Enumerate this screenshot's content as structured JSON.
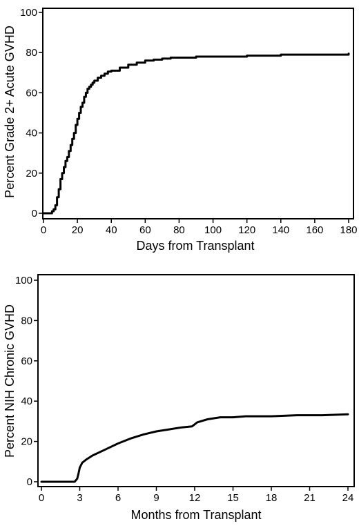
{
  "chart_data": [
    {
      "type": "line",
      "step": true,
      "xlabel": "Days from Transplant",
      "ylabel": "Percent Grade 2+ Acute GVHD",
      "xlim": [
        0,
        180
      ],
      "ylim": [
        0,
        100
      ],
      "xticks": [
        0,
        20,
        40,
        60,
        80,
        100,
        120,
        140,
        160,
        180
      ],
      "yticks": [
        0,
        20,
        40,
        60,
        80,
        100
      ],
      "grid": false,
      "series": [
        {
          "x": [
            0,
            4,
            5,
            6,
            7,
            8,
            9,
            10,
            11,
            12,
            13,
            14,
            15,
            16,
            17,
            18,
            19,
            20,
            21,
            22,
            23,
            24,
            25,
            26,
            27,
            28,
            29,
            30,
            32,
            34,
            36,
            38,
            40,
            45,
            50,
            55,
            60,
            65,
            70,
            75,
            80,
            90,
            100,
            120,
            140,
            160,
            180
          ],
          "y": [
            0,
            0,
            1,
            2,
            4,
            8,
            12,
            17,
            20,
            23,
            26,
            28,
            31,
            34,
            37,
            40,
            44,
            47,
            50,
            53,
            55,
            58,
            60,
            62,
            63,
            64,
            65,
            66,
            67.5,
            68.5,
            69.5,
            70.5,
            71,
            72.5,
            74,
            75,
            76,
            76.5,
            77,
            77.5,
            77.5,
            78,
            78,
            78.5,
            79,
            79,
            79.5
          ],
          "color": "#000000"
        }
      ]
    },
    {
      "type": "line",
      "step": false,
      "xlabel": "Months from Transplant",
      "ylabel": "Percent NIH Chronic GVHD",
      "xlim": [
        0,
        24
      ],
      "ylim": [
        0,
        100
      ],
      "xticks": [
        0,
        3,
        6,
        9,
        12,
        15,
        18,
        21,
        24
      ],
      "yticks": [
        0,
        20,
        40,
        60,
        80,
        100
      ],
      "grid": false,
      "series": [
        {
          "x": [
            0,
            2.6,
            2.8,
            2.9,
            3.0,
            3.2,
            3.5,
            4,
            5,
            6,
            7,
            8,
            9,
            10,
            11,
            11.8,
            12.2,
            13,
            14,
            15,
            16,
            18,
            20,
            22,
            24
          ],
          "y": [
            0,
            0,
            1.5,
            4,
            7,
            9.5,
            11,
            13,
            16,
            19,
            21.5,
            23.5,
            25,
            26,
            27,
            27.5,
            29.5,
            31,
            32,
            32,
            32.5,
            32.5,
            33,
            33,
            33.5
          ],
          "color": "#000000"
        }
      ]
    }
  ]
}
